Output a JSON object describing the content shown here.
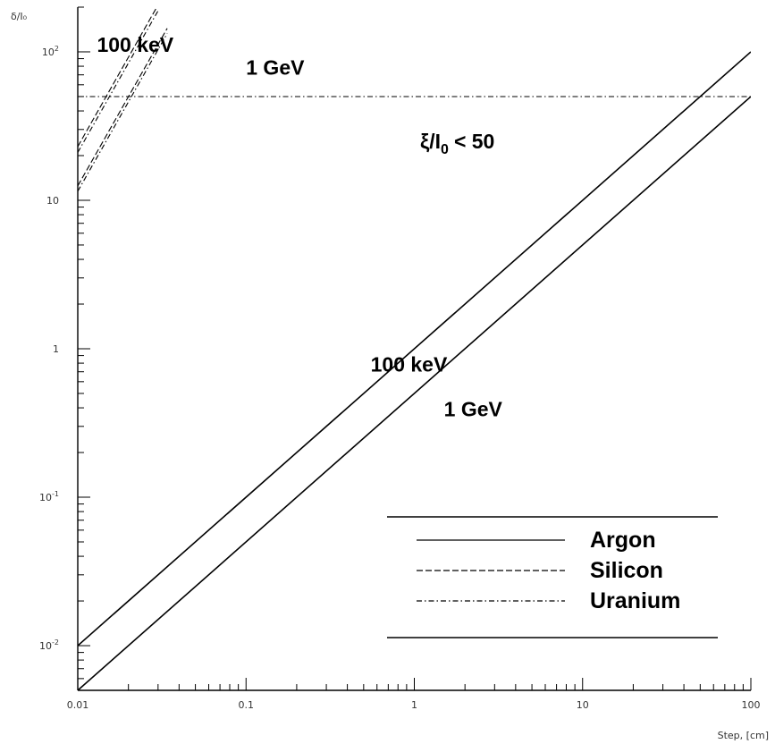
{
  "chart_data": {
    "type": "line",
    "xlabel": "Step, [cm]",
    "ylabel": "δ/I₀",
    "x_scale": "log",
    "y_scale": "log",
    "xlim": [
      0.01,
      100
    ],
    "ylim": [
      0.005,
      200
    ],
    "x_ticks": [
      {
        "value": 0.01,
        "label": "0.01"
      },
      {
        "value": 0.1,
        "label": "0.1"
      },
      {
        "value": 1,
        "label": "1"
      },
      {
        "value": 10,
        "label": "10"
      },
      {
        "value": 100,
        "label": "100"
      }
    ],
    "y_ticks": [
      {
        "value": 0.01,
        "base": "10",
        "exp": "-2"
      },
      {
        "value": 0.1,
        "base": "10",
        "exp": "-1"
      },
      {
        "value": 1,
        "base": "1",
        "exp": ""
      },
      {
        "value": 10,
        "base": "10",
        "exp": ""
      },
      {
        "value": 100,
        "base": "10",
        "exp": "2"
      }
    ],
    "series": [
      {
        "name": "Argon",
        "label": "100 keV",
        "style": "solid",
        "x": [
          0.01,
          100
        ],
        "y": [
          0.01,
          100
        ]
      },
      {
        "name": "Argon",
        "label": "1 GeV",
        "style": "solid",
        "x": [
          0.01,
          100
        ],
        "y": [
          0.005,
          50
        ]
      },
      {
        "name": "Silicon",
        "label": "100 keV",
        "style": "dashed",
        "x": [
          0.01,
          0.03
        ],
        "y": [
          23,
          207
        ]
      },
      {
        "name": "Silicon",
        "label": "1 GeV",
        "style": "dashed",
        "x": [
          0.01,
          0.034
        ],
        "y": [
          12.5,
          144
        ]
      },
      {
        "name": "Uranium",
        "label": "100 keV",
        "style": "dashdot",
        "x": [
          0.01,
          0.03
        ],
        "y": [
          21,
          189
        ]
      },
      {
        "name": "Uranium",
        "label": "1 GeV",
        "style": "dashdot",
        "x": [
          0.01,
          0.034
        ],
        "y": [
          11.5,
          133
        ]
      }
    ],
    "threshold": {
      "y": 50,
      "label_text": "< 50",
      "style": "dashdot"
    },
    "annotations": [
      {
        "text": "100 keV",
        "x": 0.013,
        "y": 100
      },
      {
        "text": "1 GeV",
        "x": 0.1,
        "y": 70
      },
      {
        "text": "100 keV",
        "x": 0.55,
        "y": 0.7
      },
      {
        "text": "1 GeV",
        "x": 1.5,
        "y": 0.35
      }
    ],
    "legend": {
      "position": "bottom-right",
      "entries": [
        {
          "label": "Argon",
          "style": "solid"
        },
        {
          "label": "Silicon",
          "style": "dashed"
        },
        {
          "label": "Uranium",
          "style": "dashdot"
        }
      ]
    },
    "grid": false
  }
}
